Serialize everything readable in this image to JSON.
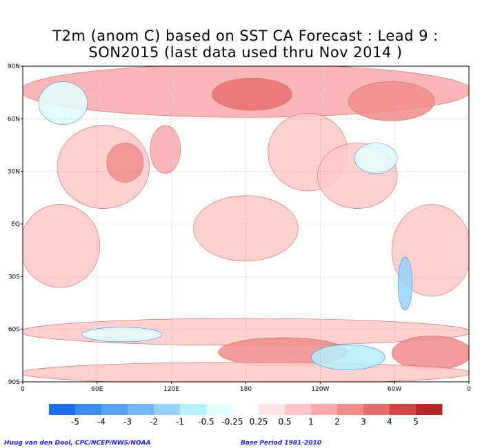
{
  "title": {
    "line1": "T2m (anom C) based on SST CA Forecast : Lead 9 :",
    "line2": "SON2015 (last data used thru Nov 2014 )"
  },
  "map": {
    "projection": "equirectangular",
    "extent": {
      "lon": [
        0,
        360
      ],
      "lat": [
        -90,
        90
      ]
    },
    "lat_ticks": [
      {
        "lat": 90,
        "label": "90N"
      },
      {
        "lat": 60,
        "label": "60N"
      },
      {
        "lat": 30,
        "label": "30N"
      },
      {
        "lat": 0,
        "label": "EQ"
      },
      {
        "lat": -30,
        "label": "30S"
      },
      {
        "lat": -60,
        "label": "60S"
      },
      {
        "lat": -90,
        "label": "90S"
      }
    ],
    "lon_ticks": [
      {
        "lon": 0,
        "label": "0"
      },
      {
        "lon": 60,
        "label": "60E"
      },
      {
        "lon": 120,
        "label": "120E"
      },
      {
        "lon": 180,
        "label": "180"
      },
      {
        "lon": 240,
        "label": "120W"
      },
      {
        "lon": 300,
        "label": "60W"
      },
      {
        "lon": 360,
        "label": "0"
      }
    ],
    "gridlines": "dotted",
    "background_color": "#ffffff",
    "anomaly_regions": [
      {
        "lon": [
          0,
          360
        ],
        "lat": [
          62,
          90
        ],
        "level": 2
      },
      {
        "lon": [
          155,
          215
        ],
        "lat": [
          66,
          82
        ],
        "level": 4
      },
      {
        "lon": [
          265,
          330
        ],
        "lat": [
          60,
          80
        ],
        "level": 3
      },
      {
        "lon": [
          200,
          260
        ],
        "lat": [
          20,
          62
        ],
        "level": 1
      },
      {
        "lon": [
          240,
          300
        ],
        "lat": [
          10,
          45
        ],
        "level": 1
      },
      {
        "lon": [
          30,
          100
        ],
        "lat": [
          10,
          55
        ],
        "level": 1
      },
      {
        "lon": [
          70,
          95
        ],
        "lat": [
          25,
          45
        ],
        "level": 3
      },
      {
        "lon": [
          105,
          125
        ],
        "lat": [
          30,
          55
        ],
        "level": 2
      },
      {
        "lon": [
          140,
          220
        ],
        "lat": [
          -20,
          15
        ],
        "level": 1
      },
      {
        "lon": [
          300,
          360
        ],
        "lat": [
          -40,
          10
        ],
        "level": 1
      },
      {
        "lon": [
          0,
          60
        ],
        "lat": [
          -35,
          10
        ],
        "level": 1
      },
      {
        "lon": [
          0,
          360
        ],
        "lat": [
          -68,
          -55
        ],
        "level": 1
      },
      {
        "lon": [
          160,
          260
        ],
        "lat": [
          -80,
          -66
        ],
        "level": 3
      },
      {
        "lon": [
          300,
          360
        ],
        "lat": [
          -82,
          -65
        ],
        "level": 3
      },
      {
        "lon": [
          0,
          360
        ],
        "lat": [
          -90,
          -80
        ],
        "level": 1
      },
      {
        "lon": [
          15,
          50
        ],
        "lat": [
          58,
          80
        ],
        "level": -1
      },
      {
        "lon": [
          50,
          110
        ],
        "lat": [
          -66,
          -60
        ],
        "level": -1
      },
      {
        "lon": [
          235,
          290
        ],
        "lat": [
          -82,
          -70
        ],
        "level": -2
      },
      {
        "lon": [
          305,
          312
        ],
        "lat": [
          -48,
          -20
        ],
        "level": -3
      },
      {
        "lon": [
          270,
          300
        ],
        "lat": [
          30,
          45
        ],
        "level": -1
      }
    ]
  },
  "colorbar": {
    "levels": [
      {
        "label": "-5",
        "color": "#1e6eeb"
      },
      {
        "label": "-4",
        "color": "#3c8cf0"
      },
      {
        "label": "-3",
        "color": "#5aa0f5"
      },
      {
        "label": "-2",
        "color": "#78b4fa"
      },
      {
        "label": "-1",
        "color": "#96d2fa"
      },
      {
        "label": "-0.5",
        "color": "#b4f0fa"
      },
      {
        "label": "-0.25",
        "color": "#e1ffff"
      },
      {
        "label": "",
        "color": "#ffffff"
      },
      {
        "label": "0.25",
        "color": "#ffe6e6"
      },
      {
        "label": "0.5",
        "color": "#ffc8c8"
      },
      {
        "label": "1",
        "color": "#faaaaa"
      },
      {
        "label": "2",
        "color": "#f08c8c"
      },
      {
        "label": "3",
        "color": "#e66e6e"
      },
      {
        "label": "4",
        "color": "#d24646"
      },
      {
        "label": "5",
        "color": "#b42828"
      }
    ],
    "labels": [
      "-5",
      "-4",
      "-3",
      "-2",
      "-1",
      "-0.5",
      "-0.25",
      "0.25",
      "0.5",
      "1",
      "2",
      "3",
      "4",
      "5"
    ],
    "box_colors": [
      "#1e6eeb",
      "#3c8cf0",
      "#5aa0f5",
      "#78b4fa",
      "#96d2fa",
      "#b4f0fa",
      "#e1ffff",
      "#ffffff",
      "#ffe6e6",
      "#ffc8c8",
      "#faaaaa",
      "#f08c8c",
      "#e66e6e",
      "#d24646",
      "#b42828"
    ]
  },
  "credits": {
    "left": "Huug van den Dool, CPC/NCEP/NWS/NOAA",
    "right": "Base Period 1981-2010"
  }
}
